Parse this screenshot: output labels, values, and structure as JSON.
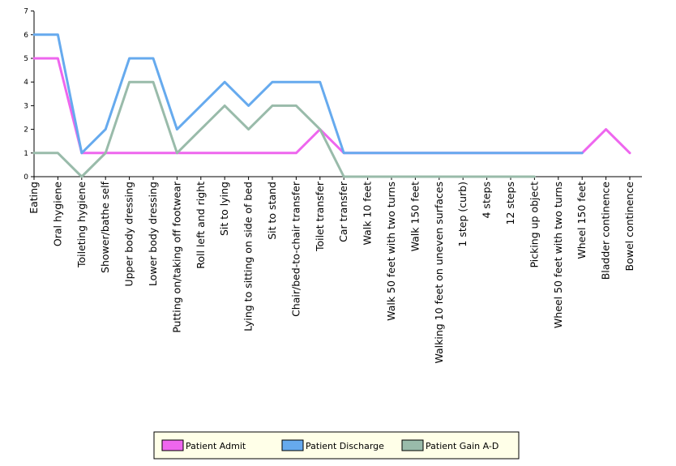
{
  "chart_data": {
    "type": "line",
    "title": "",
    "xlabel": "",
    "ylabel": "",
    "ylim": [
      0,
      7
    ],
    "yticks": [
      "0",
      "1",
      "2",
      "3",
      "4",
      "5",
      "6",
      "7"
    ],
    "grid": false,
    "legend_position": "bottom",
    "categories": [
      "Eating",
      "Oral hygiene",
      "Toileting hygiene",
      "Shower/bathe self",
      "Upper body dressing",
      "Lower body dressing",
      "Putting on/taking off footwear",
      "Roll left and right",
      "Sit to lying",
      "Lying to sitting on side of bed",
      "Sit to stand",
      "Chair/bed-to-chair transfer",
      "Toilet transfer",
      "Car transfer",
      "Walk 10 feet",
      "Walk 50 feet with two turns",
      "Walk 150 feet",
      "Walking 10 feet on uneven surfaces",
      "1 step (curb)",
      "4 steps",
      "12 steps",
      "Picking up object",
      "Wheel 50 feet with two turns",
      "Wheel 150 feet",
      "Bladder continence",
      "Bowel continence"
    ],
    "series": [
      {
        "name": "Patient Admit",
        "color": "#ee66ee",
        "values": [
          5,
          5,
          1,
          1,
          1,
          1,
          1,
          1,
          1,
          1,
          1,
          1,
          2,
          1,
          1,
          1,
          1,
          1,
          1,
          1,
          1,
          1,
          1,
          1,
          2,
          1
        ]
      },
      {
        "name": "Patient Discharge",
        "color": "#66aaee",
        "values": [
          6,
          6,
          1,
          2,
          5,
          5,
          2,
          3,
          4,
          3,
          4,
          4,
          4,
          1,
          1,
          1,
          1,
          1,
          1,
          1,
          1,
          1,
          1,
          1,
          null,
          null
        ]
      },
      {
        "name": "Patient Gain A-D",
        "color": "#99bbaa",
        "values": [
          1,
          1,
          0,
          1,
          4,
          4,
          1,
          2,
          3,
          2,
          3,
          3,
          2,
          0,
          0,
          0,
          0,
          0,
          0,
          0,
          0,
          0,
          null,
          null,
          null,
          null
        ]
      }
    ]
  }
}
